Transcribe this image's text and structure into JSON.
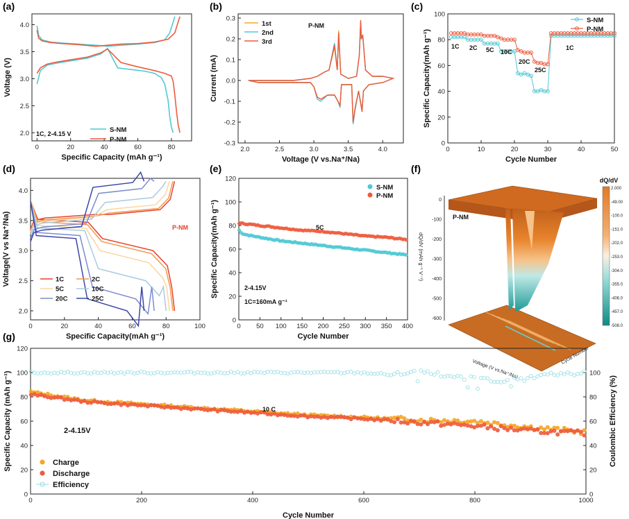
{
  "colors": {
    "s_nm": "#4fc9d4",
    "p_nm": "#ee5a3c",
    "cv1": "#f5a623",
    "cv2": "#4fc9d4",
    "cv3": "#ee5a3c",
    "charge": "#f5a623",
    "discharge": "#ee5a3c",
    "efficiency": "#8fdbe2"
  },
  "chart_data": [
    {
      "panel": "(a)",
      "type": "line",
      "xlabel": "Specific Capacity (mAh g⁻¹)",
      "ylabel": "Voltage (V)",
      "xlim": [
        -3,
        92
      ],
      "ylim": [
        1.85,
        4.2
      ],
      "xticks": [
        0,
        20,
        40,
        60,
        80
      ],
      "yticks": [
        2.0,
        2.5,
        3.0,
        3.5,
        4.0
      ],
      "annotation": "1C, 2-4.15 V",
      "legend": [
        "S-NM",
        "P-NM"
      ],
      "series": [
        {
          "name": "S-NM",
          "color": "s_nm",
          "x": [
            0,
            1,
            3,
            8,
            15,
            25,
            35,
            42,
            50,
            60,
            70,
            76,
            79,
            81,
            82
          ],
          "y": [
            3.98,
            3.8,
            3.72,
            3.68,
            3.66,
            3.64,
            3.62,
            3.6,
            3.62,
            3.64,
            3.67,
            3.72,
            3.85,
            4.05,
            4.15
          ]
        },
        {
          "name": "S-NM discharge",
          "color": "s_nm",
          "x": [
            0,
            2,
            6,
            12,
            20,
            30,
            38,
            42,
            48,
            56,
            64,
            70,
            74,
            76,
            78,
            79,
            80,
            81
          ],
          "y": [
            2.9,
            3.15,
            3.25,
            3.29,
            3.33,
            3.38,
            3.46,
            3.56,
            3.2,
            3.17,
            3.14,
            3.1,
            3.02,
            2.9,
            2.6,
            2.3,
            2.1,
            2.0
          ]
        },
        {
          "name": "P-NM",
          "color": "p_nm",
          "x": [
            0,
            1,
            3,
            8,
            15,
            25,
            35,
            42,
            50,
            60,
            70,
            78,
            82,
            84,
            85
          ],
          "y": [
            3.9,
            3.75,
            3.7,
            3.67,
            3.65,
            3.63,
            3.6,
            3.62,
            3.64,
            3.65,
            3.68,
            3.73,
            3.85,
            4.05,
            4.15
          ]
        },
        {
          "name": "P-NM discharge",
          "color": "p_nm",
          "x": [
            0,
            2,
            6,
            12,
            20,
            30,
            38,
            42,
            50,
            60,
            70,
            76,
            80,
            81,
            82,
            83,
            84,
            85
          ],
          "y": [
            3.1,
            3.2,
            3.27,
            3.31,
            3.35,
            3.4,
            3.48,
            3.55,
            3.3,
            3.22,
            3.15,
            3.1,
            3.05,
            2.95,
            2.7,
            2.4,
            2.15,
            2.0
          ]
        }
      ]
    },
    {
      "panel": "(b)",
      "type": "line",
      "xlabel": "Voltage (V vs.Na⁺/Na)",
      "ylabel": "Current (mA)",
      "xlim": [
        1.9,
        4.3
      ],
      "ylim": [
        -0.3,
        0.32
      ],
      "xticks": [
        2.0,
        2.5,
        3.0,
        3.5,
        4.0
      ],
      "yticks": [
        -0.3,
        -0.2,
        -0.1,
        0.0,
        0.1,
        0.2,
        0.3
      ],
      "annotation": "P-NM",
      "legend": [
        "1st",
        "2nd",
        "3rd"
      ],
      "series": [
        {
          "name": "1st",
          "color": "cv1",
          "x": [
            2.05,
            2.3,
            2.7,
            2.95,
            3.05,
            3.15,
            3.22,
            3.3,
            3.34,
            3.36,
            3.39,
            3.5,
            3.62,
            3.66,
            3.68,
            3.69,
            3.71,
            3.75,
            3.85,
            4.0,
            4.15,
            4.0,
            3.8,
            3.72,
            3.7,
            3.65,
            3.6,
            3.57,
            3.55,
            3.4,
            3.38,
            3.35,
            3.3,
            3.2,
            3.1,
            3.05,
            3.0,
            2.95,
            2.8,
            2.5,
            2.2,
            2.05
          ],
          "y": [
            0.0,
            0.0,
            0.0,
            0.01,
            0.02,
            0.04,
            0.05,
            0.16,
            0.05,
            0.24,
            0.03,
            0.01,
            0.02,
            0.12,
            0.27,
            0.2,
            0.22,
            0.05,
            0.02,
            0.02,
            0.01,
            -0.01,
            -0.02,
            -0.05,
            -0.15,
            -0.05,
            -0.13,
            -0.2,
            -0.02,
            -0.02,
            -0.12,
            -0.1,
            -0.07,
            -0.07,
            -0.09,
            -0.08,
            -0.03,
            -0.01,
            -0.01,
            -0.01,
            -0.01,
            0.0
          ]
        },
        {
          "name": "2nd",
          "color": "cv2",
          "x": [
            2.05,
            2.3,
            2.7,
            2.95,
            3.05,
            3.15,
            3.22,
            3.3,
            3.34,
            3.36,
            3.39,
            3.5,
            3.62,
            3.66,
            3.68,
            3.69,
            3.71,
            3.75,
            3.85,
            4.0,
            4.15,
            4.0,
            3.8,
            3.72,
            3.7,
            3.65,
            3.6,
            3.57,
            3.55,
            3.4,
            3.38,
            3.35,
            3.3,
            3.2,
            3.1,
            3.05,
            3.0,
            2.95,
            2.8,
            2.5,
            2.2,
            2.05
          ],
          "y": [
            0.0,
            0.0,
            0.0,
            0.01,
            0.02,
            0.04,
            0.05,
            0.18,
            0.05,
            0.22,
            0.03,
            0.01,
            0.02,
            0.12,
            0.28,
            0.2,
            0.21,
            0.05,
            0.02,
            0.02,
            0.01,
            -0.01,
            -0.02,
            -0.05,
            -0.14,
            -0.05,
            -0.14,
            -0.21,
            -0.02,
            -0.02,
            -0.13,
            -0.1,
            -0.07,
            -0.07,
            -0.1,
            -0.09,
            -0.03,
            -0.01,
            -0.01,
            -0.01,
            -0.01,
            0.0
          ]
        },
        {
          "name": "3rd",
          "color": "cv3",
          "x": [
            2.05,
            2.3,
            2.7,
            2.95,
            3.05,
            3.15,
            3.22,
            3.3,
            3.34,
            3.36,
            3.39,
            3.5,
            3.62,
            3.66,
            3.68,
            3.69,
            3.71,
            3.75,
            3.85,
            4.0,
            4.15,
            4.0,
            3.8,
            3.72,
            3.7,
            3.65,
            3.6,
            3.57,
            3.55,
            3.4,
            3.38,
            3.35,
            3.3,
            3.2,
            3.1,
            3.05,
            3.0,
            2.95,
            2.8,
            2.5,
            2.2,
            2.05
          ],
          "y": [
            0.0,
            0.0,
            0.0,
            0.01,
            0.02,
            0.04,
            0.05,
            0.17,
            0.05,
            0.23,
            0.03,
            0.01,
            0.02,
            0.12,
            0.29,
            0.2,
            0.22,
            0.05,
            0.02,
            0.02,
            0.01,
            -0.01,
            -0.02,
            -0.05,
            -0.15,
            -0.05,
            -0.13,
            -0.2,
            -0.02,
            -0.02,
            -0.12,
            -0.1,
            -0.07,
            -0.07,
            -0.09,
            -0.08,
            -0.03,
            -0.01,
            -0.01,
            -0.01,
            -0.01,
            0.0
          ]
        }
      ]
    },
    {
      "panel": "(c)",
      "type": "line",
      "xlabel": "Cycle Number",
      "ylabel": "Specific Capacity(mAh g⁻¹)",
      "xlim": [
        0,
        50
      ],
      "ylim": [
        0,
        100
      ],
      "xticks": [
        0,
        10,
        20,
        30,
        40,
        50
      ],
      "yticks": [
        0,
        20,
        40,
        60,
        80,
        100
      ],
      "legend": [
        "S-NM",
        "P-NM"
      ],
      "rate_labels": [
        "1C",
        "2C",
        "5C",
        "10C",
        "20C",
        "25C",
        "1C"
      ],
      "series": [
        {
          "name": "S-NM",
          "color": "s_nm",
          "x": [
            1,
            2,
            3,
            4,
            5,
            6,
            7,
            8,
            9,
            10,
            11,
            12,
            13,
            14,
            15,
            16,
            17,
            18,
            19,
            20,
            21,
            22,
            23,
            24,
            25,
            26,
            27,
            28,
            29,
            30,
            31,
            32,
            33,
            34,
            35,
            36,
            37,
            38,
            39,
            40,
            41,
            42,
            43,
            44,
            45,
            46,
            47,
            48,
            49,
            50
          ],
          "y": [
            82,
            82,
            82,
            82,
            82,
            80,
            80,
            80,
            80,
            80,
            77,
            77,
            77,
            77,
            77,
            71,
            71,
            71,
            71,
            71,
            54,
            53,
            54,
            53,
            52,
            40,
            40,
            41,
            40,
            40,
            83,
            83,
            83,
            83,
            83,
            83,
            83,
            83,
            83,
            83,
            83,
            83,
            83,
            83,
            83,
            83,
            83,
            83,
            83,
            83
          ]
        },
        {
          "name": "P-NM",
          "color": "p_nm",
          "x": [
            1,
            2,
            3,
            4,
            5,
            6,
            7,
            8,
            9,
            10,
            11,
            12,
            13,
            14,
            15,
            16,
            17,
            18,
            19,
            20,
            21,
            22,
            23,
            24,
            25,
            26,
            27,
            28,
            29,
            30,
            31,
            32,
            33,
            34,
            35,
            36,
            37,
            38,
            39,
            40,
            41,
            42,
            43,
            44,
            45,
            46,
            47,
            48,
            49,
            50
          ],
          "y": [
            85,
            85,
            85,
            85,
            85,
            84,
            84,
            84,
            84,
            84,
            83,
            83,
            83,
            83,
            82,
            81,
            80,
            80,
            80,
            80,
            72,
            71,
            70,
            70,
            70,
            63,
            62,
            62,
            61,
            61,
            85,
            85,
            85,
            85,
            85,
            85,
            85,
            85,
            85,
            85,
            85,
            85,
            85,
            85,
            85,
            85,
            85,
            85,
            85,
            85
          ]
        }
      ]
    },
    {
      "panel": "(d)",
      "type": "line",
      "xlabel": "Specific Capacity(mAh g⁻¹)",
      "ylabel": "Voltage(V vs Na⁺/Na)",
      "xlim": [
        0,
        100
      ],
      "ylim": [
        1.85,
        4.2
      ],
      "xticks": [
        0,
        20,
        40,
        60,
        80,
        100
      ],
      "yticks": [
        2.0,
        2.5,
        3.0,
        3.5,
        4.0
      ],
      "annotation": "P-NM",
      "legend": [
        "1C",
        "2C",
        "5C",
        "10C",
        "20C",
        "25C"
      ],
      "series": [
        {
          "name": "1C",
          "color": "#e8402c",
          "cap": 85,
          "ch_v": [
            3.5,
            3.6
          ],
          "dis_v": [
            3.52,
            3.2
          ]
        },
        {
          "name": "2C",
          "color": "#f2994a",
          "cap": 84,
          "ch_v": [
            3.47,
            3.62
          ],
          "dis_v": [
            3.48,
            3.15
          ]
        },
        {
          "name": "5C",
          "color": "#f9d6a0",
          "cap": 82,
          "ch_v": [
            3.45,
            3.68
          ],
          "dis_v": [
            3.42,
            3.0
          ]
        },
        {
          "name": "10C",
          "color": "#a8cbe0",
          "cap": 80,
          "ch_v": [
            3.42,
            3.8
          ],
          "dis_v": [
            3.38,
            2.7
          ]
        },
        {
          "name": "20C",
          "color": "#7b8bd0",
          "cap": 73,
          "ch_v": [
            3.35,
            3.95
          ],
          "dis_v": [
            3.3,
            2.4
          ]
        },
        {
          "name": "25C",
          "color": "#3c46a6",
          "cap": 67,
          "ch_v": [
            3.3,
            4.05
          ],
          "dis_v": [
            3.25,
            2.2
          ]
        }
      ]
    },
    {
      "panel": "(e)",
      "type": "scatter",
      "xlabel": "Cycle Number",
      "ylabel": "Specific Capacity(mAh g⁻¹)",
      "xlim": [
        0,
        400
      ],
      "ylim": [
        0,
        120
      ],
      "xticks": [
        0,
        50,
        100,
        150,
        200,
        250,
        300,
        350,
        400
      ],
      "yticks": [
        0,
        20,
        40,
        60,
        80,
        100,
        120
      ],
      "annotations": [
        "5C",
        "2-4.15V",
        "1C=160mA g⁻¹"
      ],
      "legend": [
        "S-NM",
        "P-NM"
      ],
      "series": [
        {
          "name": "S-NM",
          "color": "s_nm",
          "x": [
            1,
            5,
            10,
            20,
            50,
            100,
            150,
            200,
            250,
            300,
            350,
            400
          ],
          "y": [
            76,
            74,
            73,
            72,
            70,
            67,
            65,
            63,
            61,
            59,
            57,
            55
          ]
        },
        {
          "name": "P-NM",
          "color": "p_nm",
          "x": [
            1,
            50,
            100,
            150,
            200,
            250,
            300,
            350,
            400
          ],
          "y": [
            82,
            80,
            78,
            76,
            75,
            73,
            71,
            70,
            68
          ]
        }
      ]
    },
    {
      "panel": "(f)",
      "type": "heatmap",
      "title": "P-NM",
      "zlabel": "dQ/dV (mAh g⁻¹ V⁻¹)",
      "xlabel": "Voltage (V vs.Na⁺/Na)",
      "ylabel": "Cycle Number",
      "zticks": [
        "0",
        "-100",
        "-200",
        "-300",
        "-400",
        "-500",
        "-600"
      ],
      "colorbar_title": "dQ/dV",
      "colorbar_ticks": [
        "2.000",
        "-49.00",
        "-100.0",
        "-151.0",
        "-202.0",
        "-253.0",
        "-304.0",
        "-355.0",
        "-406.0",
        "-457.0",
        "-508.0"
      ]
    },
    {
      "panel": "(g)",
      "type": "scatter",
      "xlabel": "Cycle Number",
      "ylabel": "Specific Capacity (mAh g⁻¹)",
      "y2label": "Coulombic Efficiency (%)",
      "xlim": [
        0,
        1000
      ],
      "ylim": [
        0,
        120
      ],
      "y2lim": [
        0,
        120
      ],
      "xticks": [
        0,
        200,
        400,
        600,
        800,
        1000
      ],
      "yticks": [
        0,
        20,
        40,
        60,
        80,
        100,
        120
      ],
      "y2ticks": [
        0,
        20,
        40,
        60,
        80,
        100
      ],
      "annotations": [
        "10 C",
        "2-4.15V"
      ],
      "legend": [
        "Charge",
        "Discharge",
        "Efficiency"
      ],
      "series": [
        {
          "name": "Charge",
          "color": "charge",
          "x": [
            1,
            100,
            200,
            300,
            400,
            500,
            600,
            700,
            800,
            900,
            1000
          ],
          "y": [
            84,
            77,
            74,
            71,
            68,
            65,
            63,
            61,
            60,
            55,
            51
          ]
        },
        {
          "name": "Discharge",
          "color": "discharge",
          "x": [
            1,
            100,
            200,
            300,
            400,
            500,
            600,
            700,
            800,
            900,
            1000
          ],
          "y": [
            82,
            76,
            73,
            70,
            67,
            64,
            62,
            59,
            56,
            52,
            50
          ]
        },
        {
          "name": "Efficiency",
          "color": "efficiency",
          "x": [
            1,
            100,
            200,
            300,
            400,
            500,
            600,
            650,
            700,
            800,
            850,
            900,
            1000
          ],
          "y": [
            100,
            100,
            100,
            100,
            100,
            100,
            100,
            98,
            100,
            95,
            93,
            97,
            100
          ]
        }
      ]
    }
  ]
}
